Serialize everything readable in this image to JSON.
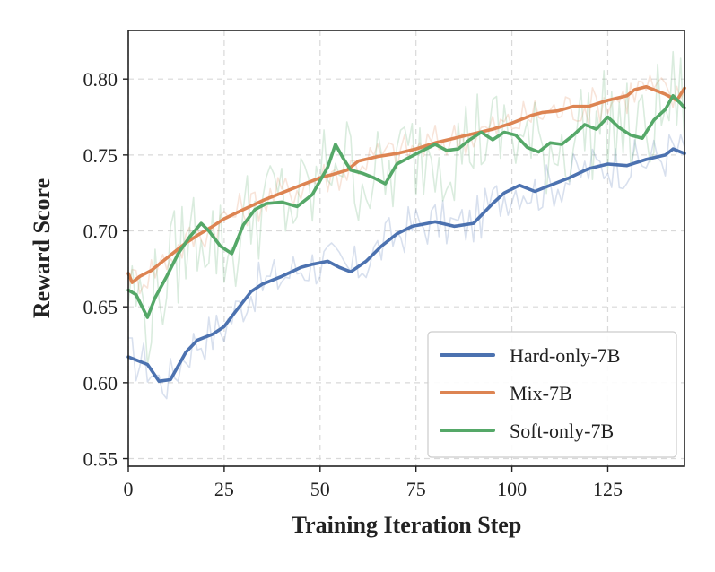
{
  "chart_data": {
    "type": "line",
    "title": "",
    "xlabel": "Training Iteration Step",
    "ylabel": "Reward Score",
    "xlim": [
      0,
      145
    ],
    "ylim": [
      0.545,
      0.832
    ],
    "xticks": [
      0,
      25,
      50,
      75,
      100,
      125
    ],
    "xtick_labels": [
      "0",
      "25",
      "50",
      "75",
      "100",
      "125"
    ],
    "yticks": [
      0.55,
      0.6,
      0.65,
      0.7,
      0.75,
      0.8
    ],
    "ytick_labels": [
      "0.55",
      "0.60",
      "0.65",
      "0.70",
      "0.75",
      "0.80"
    ],
    "grid": true,
    "legend_position": "bottom-right",
    "series": [
      {
        "name": "Hard-only-7B",
        "color": "#4c72b0",
        "x": [
          0,
          5,
          8,
          11,
          15,
          18,
          22,
          25,
          28,
          32,
          35,
          40,
          45,
          48,
          52,
          55,
          58,
          62,
          66,
          70,
          74,
          78,
          80,
          85,
          90,
          95,
          98,
          102,
          106,
          110,
          115,
          120,
          125,
          130,
          135,
          140,
          142,
          145
        ],
        "values": [
          0.617,
          0.612,
          0.601,
          0.602,
          0.62,
          0.628,
          0.632,
          0.637,
          0.647,
          0.66,
          0.665,
          0.67,
          0.676,
          0.678,
          0.68,
          0.676,
          0.673,
          0.68,
          0.69,
          0.698,
          0.703,
          0.705,
          0.706,
          0.703,
          0.705,
          0.718,
          0.725,
          0.73,
          0.726,
          0.73,
          0.735,
          0.741,
          0.744,
          0.743,
          0.747,
          0.75,
          0.754,
          0.751
        ]
      },
      {
        "name": "Mix-7B",
        "color": "#dd8452",
        "x": [
          0,
          1,
          3,
          6,
          9,
          12,
          15,
          18,
          20,
          22,
          25,
          30,
          35,
          40,
          45,
          50,
          53,
          57,
          60,
          65,
          70,
          75,
          80,
          85,
          90,
          95,
          100,
          105,
          108,
          112,
          116,
          120,
          125,
          130,
          132,
          135,
          140,
          143,
          145
        ],
        "values": [
          0.672,
          0.666,
          0.67,
          0.674,
          0.68,
          0.686,
          0.692,
          0.697,
          0.7,
          0.703,
          0.708,
          0.714,
          0.72,
          0.725,
          0.73,
          0.735,
          0.737,
          0.74,
          0.746,
          0.749,
          0.751,
          0.754,
          0.758,
          0.761,
          0.764,
          0.767,
          0.771,
          0.776,
          0.778,
          0.779,
          0.782,
          0.782,
          0.786,
          0.789,
          0.793,
          0.795,
          0.79,
          0.786,
          0.794
        ]
      },
      {
        "name": "Soft-only-7B",
        "color": "#55a868",
        "x": [
          0,
          2,
          4,
          5,
          7,
          10,
          13,
          16,
          19,
          21,
          24,
          27,
          30,
          33,
          36,
          40,
          44,
          48,
          52,
          54,
          56,
          58,
          61,
          64,
          67,
          70,
          73,
          76,
          80,
          83,
          86,
          89,
          92,
          95,
          98,
          101,
          104,
          107,
          110,
          113,
          116,
          119,
          122,
          125,
          128,
          131,
          134,
          137,
          140,
          142,
          144,
          145
        ],
        "values": [
          0.661,
          0.658,
          0.648,
          0.643,
          0.656,
          0.67,
          0.685,
          0.696,
          0.705,
          0.7,
          0.69,
          0.685,
          0.704,
          0.714,
          0.718,
          0.719,
          0.716,
          0.724,
          0.742,
          0.757,
          0.748,
          0.74,
          0.738,
          0.735,
          0.731,
          0.744,
          0.748,
          0.752,
          0.757,
          0.753,
          0.754,
          0.76,
          0.765,
          0.76,
          0.765,
          0.763,
          0.755,
          0.752,
          0.758,
          0.757,
          0.763,
          0.77,
          0.767,
          0.775,
          0.768,
          0.763,
          0.761,
          0.773,
          0.78,
          0.789,
          0.784,
          0.781
        ]
      }
    ]
  }
}
